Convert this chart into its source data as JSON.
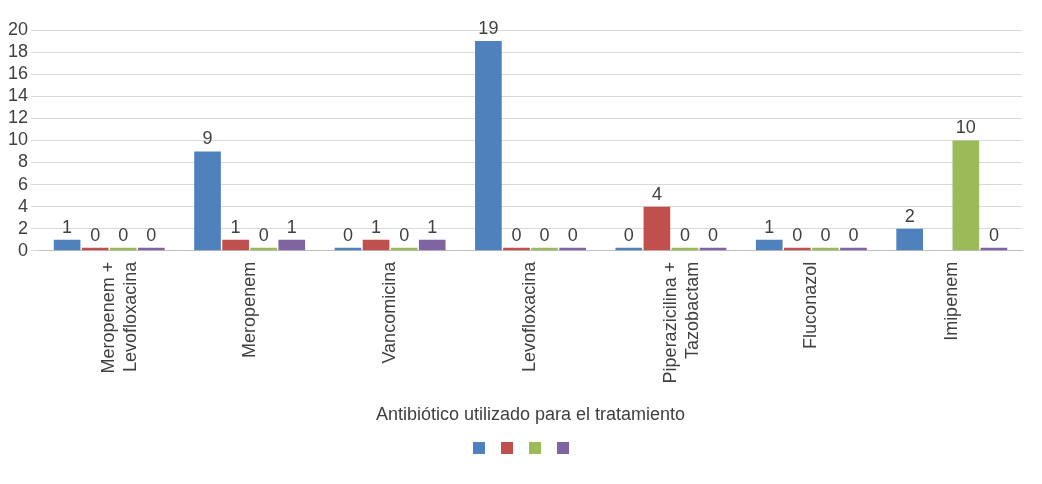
{
  "chart_data": {
    "type": "bar",
    "xlabel": "Antibiótico utilizado para el tratamiento",
    "categories": [
      "Meropenem + Levofloxacina",
      "Meropenem",
      "Vancomicina",
      "Levofloxacina",
      "Piperazicilina + Tazobactam",
      "Fluconazol",
      "Imipenem"
    ],
    "series": [
      {
        "color": "#4f81bd",
        "values": [
          1,
          9,
          0,
          19,
          0,
          1,
          2
        ]
      },
      {
        "color": "#c0504d",
        "values": [
          0,
          1,
          1,
          0,
          4,
          0,
          null
        ]
      },
      {
        "color": "#9bbb59",
        "values": [
          0,
          0,
          0,
          0,
          0,
          0,
          10
        ]
      },
      {
        "color": "#8064a2",
        "values": [
          0,
          1,
          1,
          0,
          0,
          0,
          0
        ]
      }
    ],
    "ylim": [
      0,
      20
    ],
    "yticks": [
      0,
      2,
      4,
      6,
      8,
      10,
      12,
      14,
      16,
      18,
      20
    ],
    "grid": "y",
    "data_labels": true
  }
}
